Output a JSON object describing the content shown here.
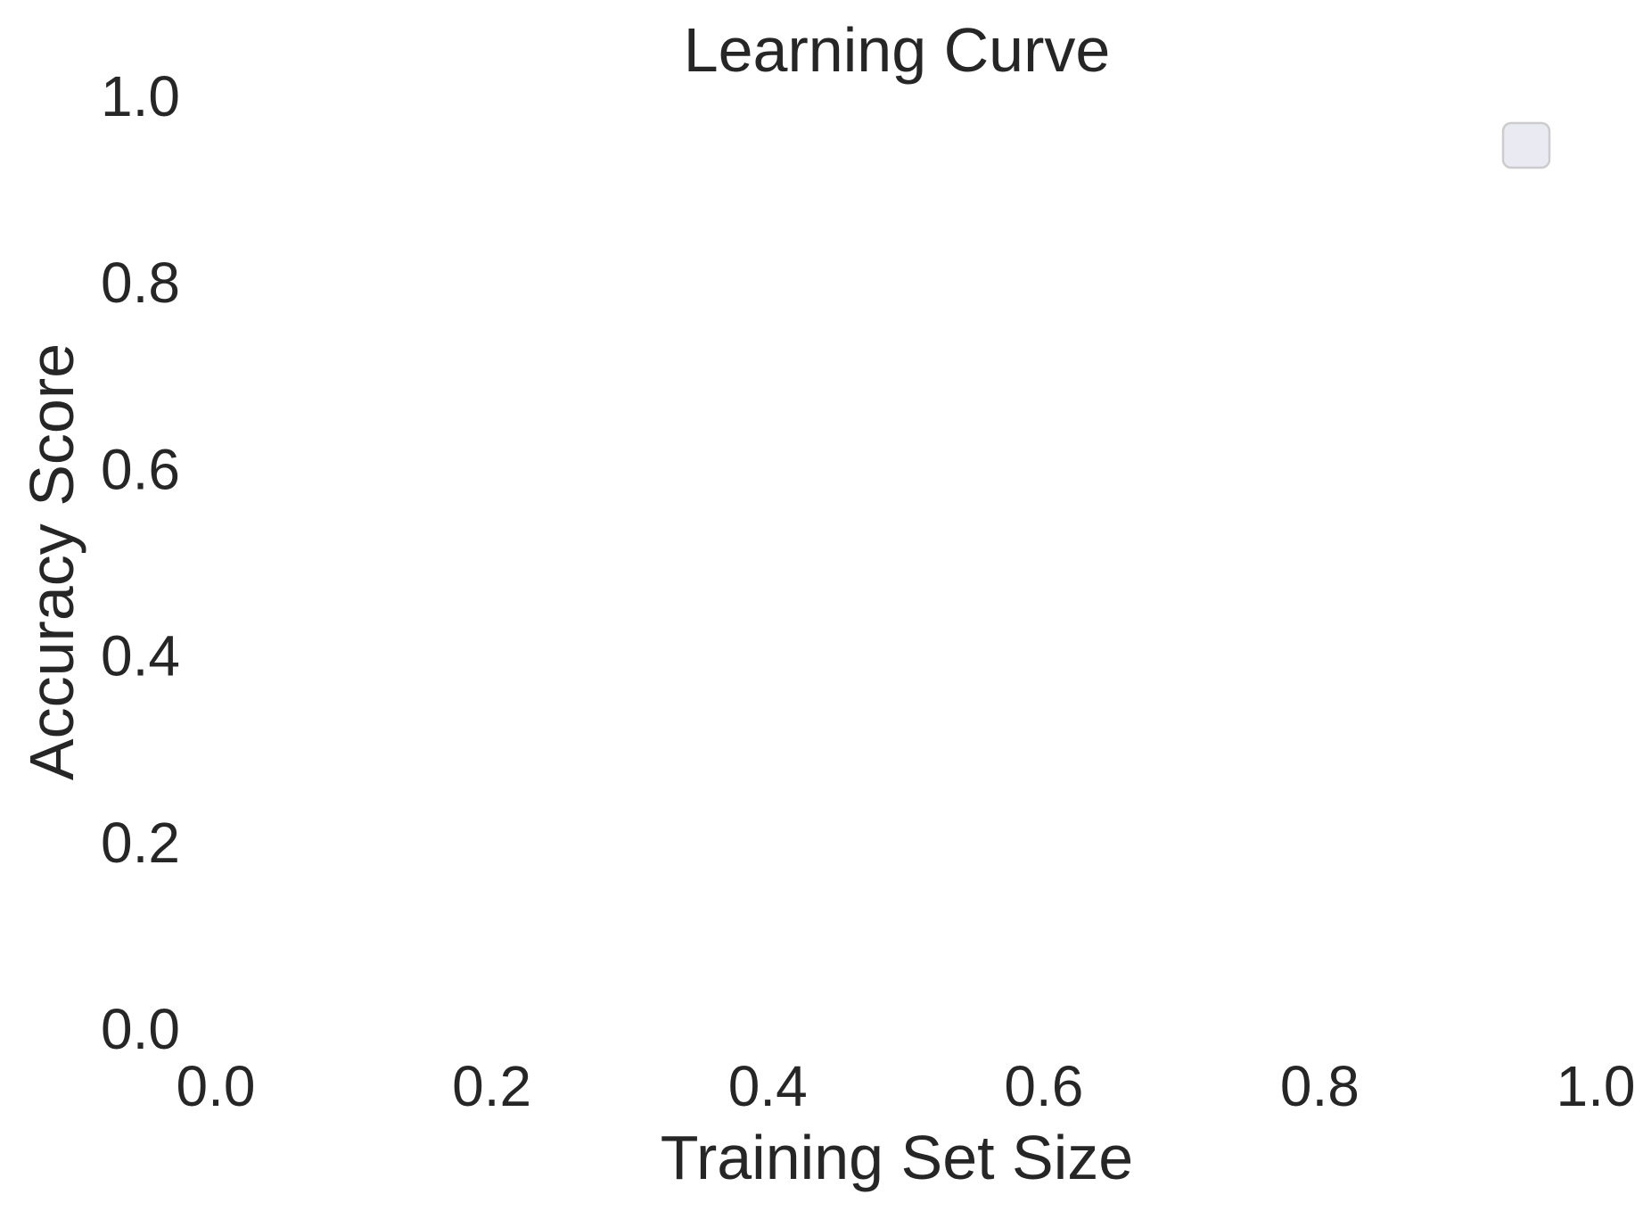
{
  "chart_data": {
    "type": "line",
    "title": "Learning Curve",
    "xlabel": "Training Set Size",
    "ylabel": "Accuracy Score",
    "xlim": [
      0.0,
      1.0
    ],
    "ylim": [
      0.0,
      1.0
    ],
    "x_ticks": [
      "0.0",
      "0.2",
      "0.4",
      "0.6",
      "0.8",
      "1.0"
    ],
    "y_ticks": [
      "0.0",
      "0.2",
      "0.4",
      "0.6",
      "0.8",
      "1.0"
    ],
    "series": [],
    "grid": false,
    "legend": {
      "position": "top-right",
      "entries": [],
      "background": "#eaeaf2",
      "border_color": "#cccccc"
    },
    "colors": {
      "background": "#ffffff",
      "text": "#262626"
    }
  }
}
